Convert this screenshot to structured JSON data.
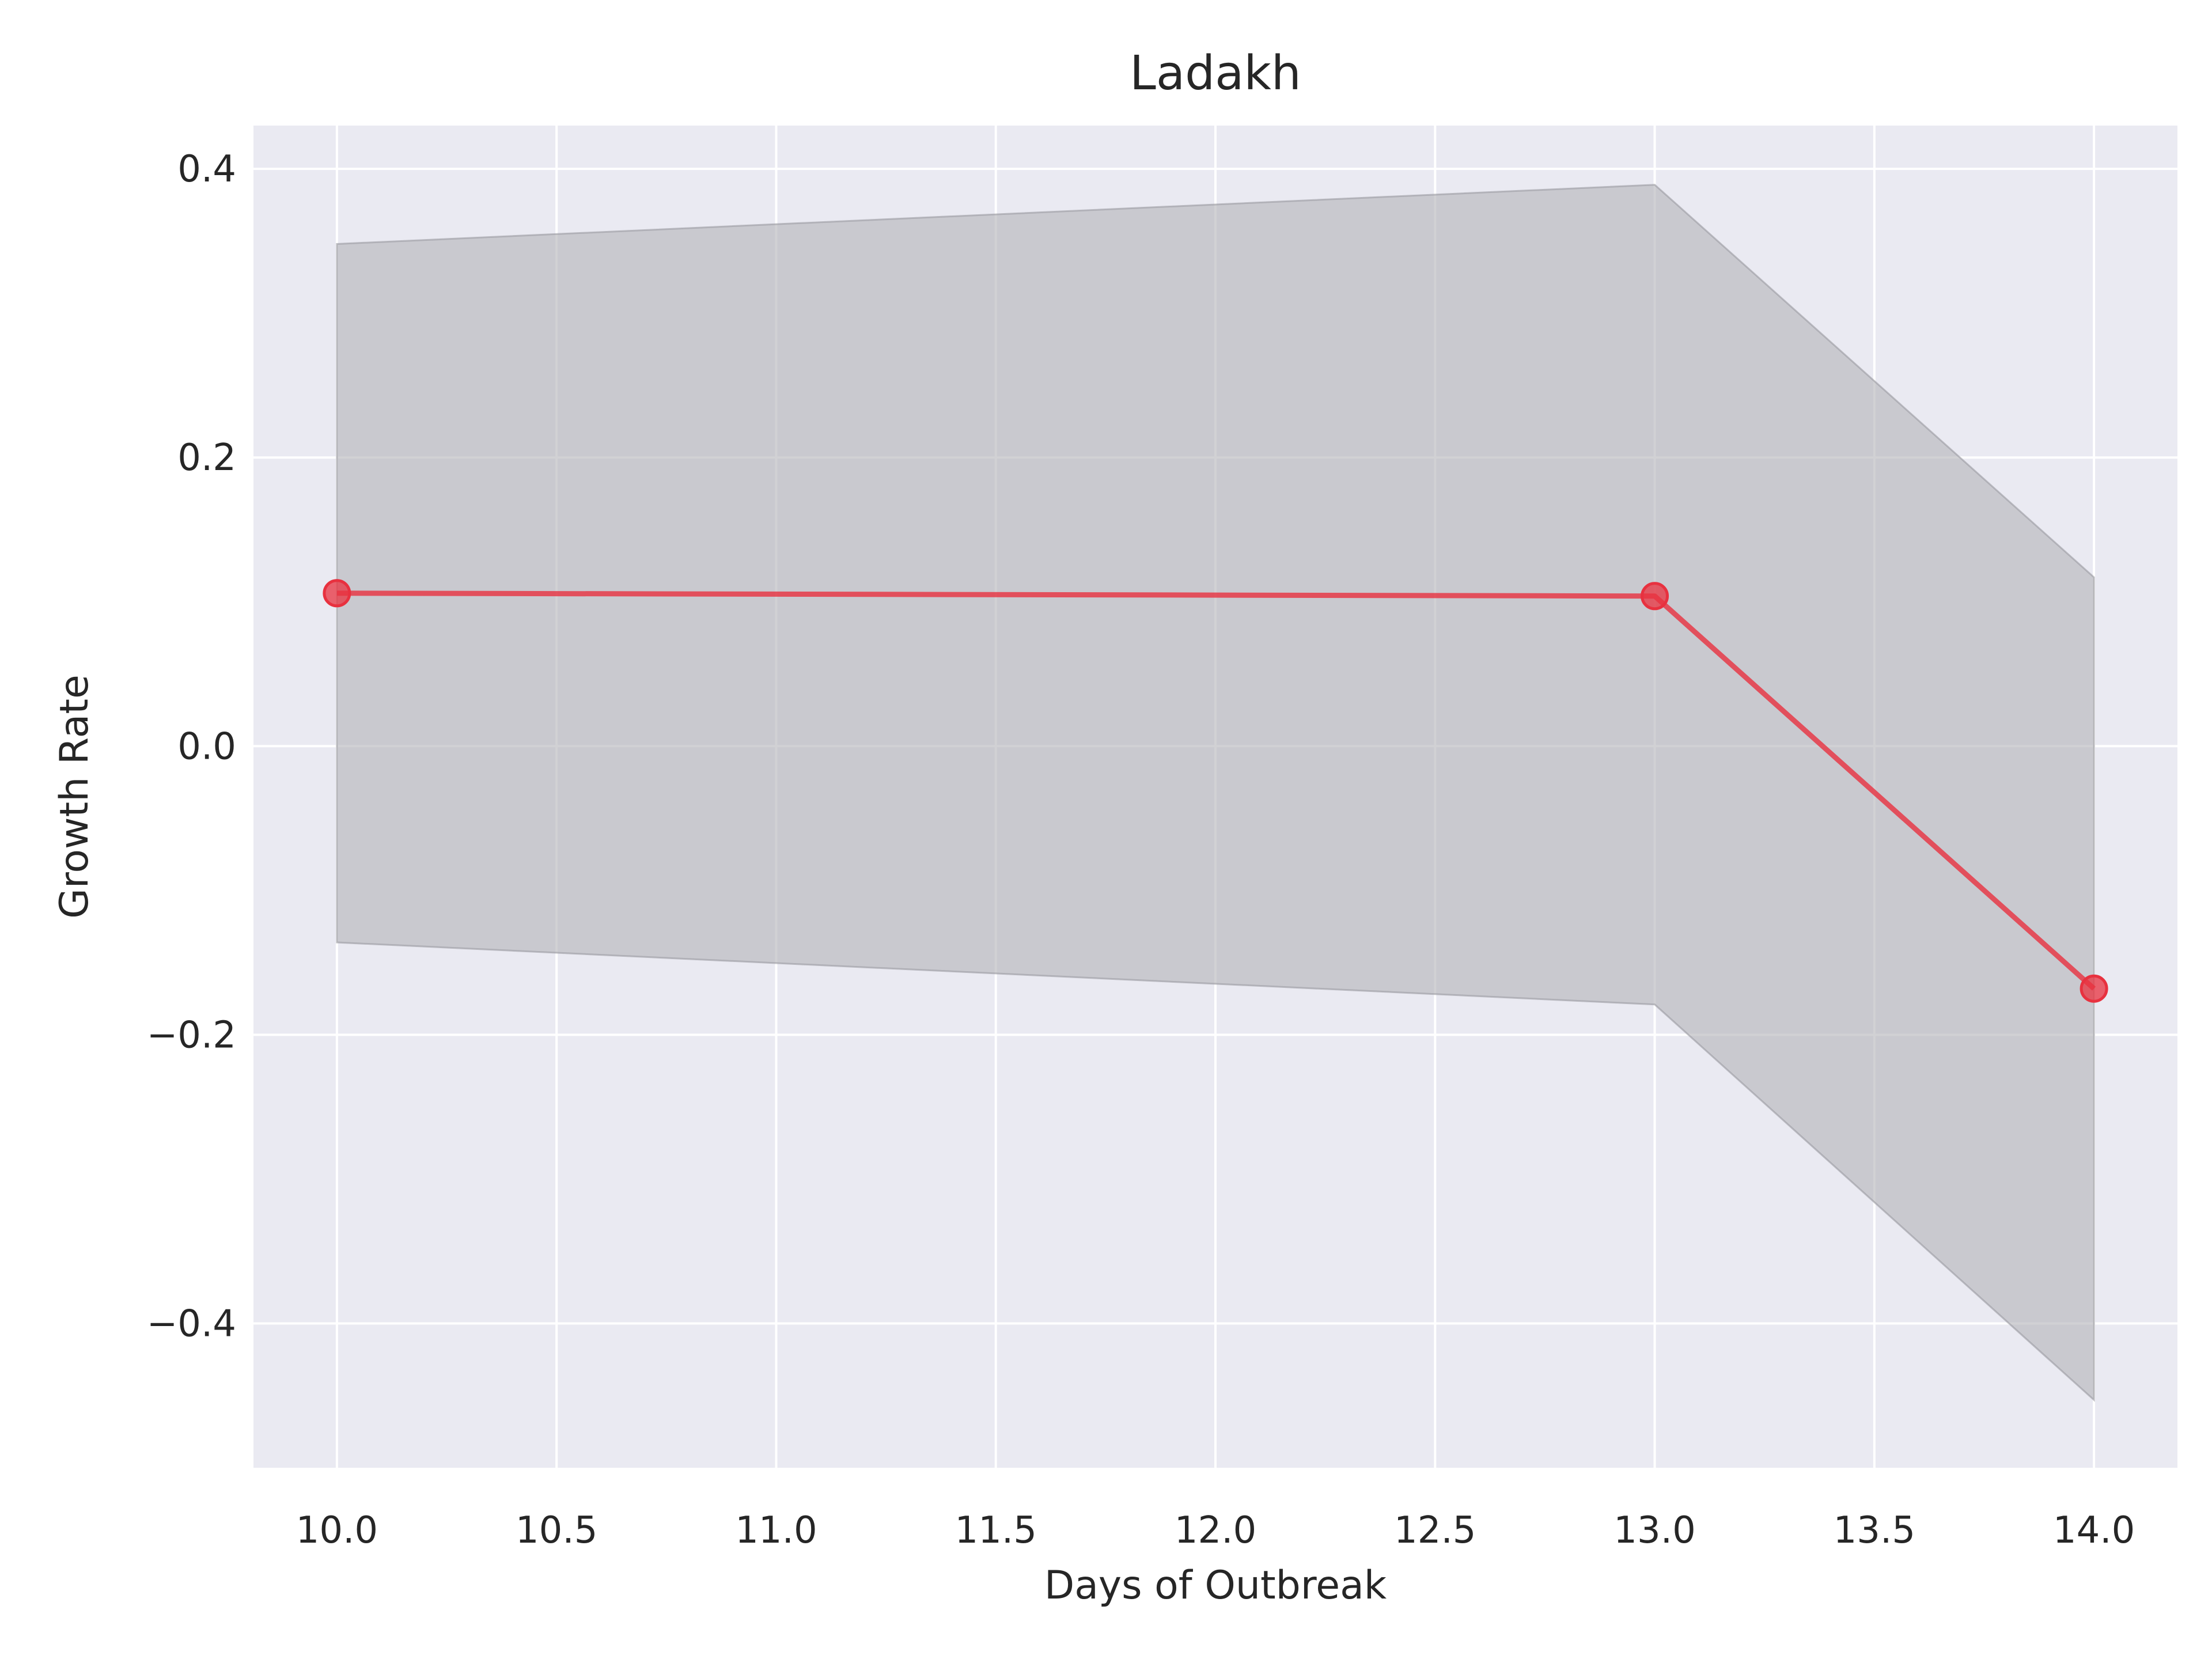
{
  "chart_data": {
    "type": "line",
    "title": "Ladakh",
    "xlabel": "Days of Outbreak",
    "ylabel": "Growth Rate",
    "xlim": [
      9.81,
      14.19
    ],
    "ylim": [
      -0.5,
      0.43
    ],
    "x_ticks": [
      10.0,
      10.5,
      11.0,
      11.5,
      12.0,
      12.5,
      13.0,
      13.5,
      14.0
    ],
    "x_tick_labels": [
      "10.0",
      "10.5",
      "11.0",
      "11.5",
      "12.0",
      "12.5",
      "13.0",
      "13.5",
      "14.0"
    ],
    "y_ticks": [
      -0.4,
      -0.2,
      0.0,
      0.2,
      0.4
    ],
    "y_tick_labels": [
      "−0.4",
      "−0.2",
      "0.0",
      "0.2",
      "0.4"
    ],
    "grid": true,
    "series": [
      {
        "x": [
          10,
          13,
          14
        ],
        "y": [
          0.106,
          0.104,
          -0.168
        ],
        "lower": [
          -0.136,
          -0.179,
          -0.453
        ],
        "upper": [
          0.348,
          0.389,
          0.117
        ],
        "color": "#e8313f",
        "band_color": "#b3b3b8"
      }
    ],
    "colors": {
      "plot_background": "#eaeaf2",
      "grid": "#ffffff",
      "text": "#262626"
    }
  }
}
